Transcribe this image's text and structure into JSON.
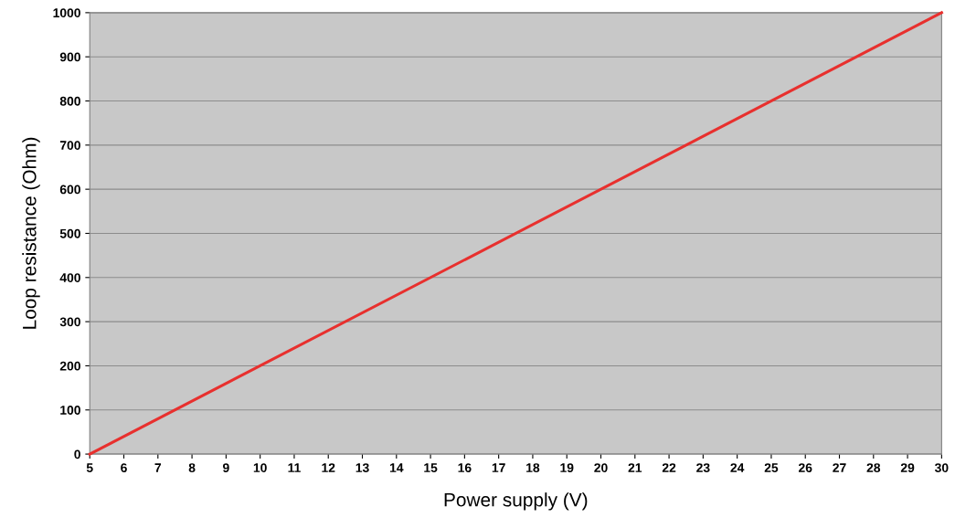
{
  "chart_data": {
    "type": "line",
    "xlabel": "Power supply (V)",
    "ylabel": "Loop resistance (Ohm)",
    "x": [
      5,
      30
    ],
    "series": [
      {
        "color": "#e8302e",
        "values": [
          0,
          1000
        ]
      }
    ],
    "xlim": [
      5,
      30
    ],
    "xticks": [
      5,
      6,
      7,
      8,
      9,
      10,
      11,
      12,
      13,
      14,
      15,
      16,
      17,
      18,
      19,
      20,
      21,
      22,
      23,
      24,
      25,
      26,
      27,
      28,
      29,
      30
    ],
    "ylim": [
      0,
      1000
    ],
    "yticks": [
      0,
      100,
      200,
      300,
      400,
      500,
      600,
      700,
      800,
      900,
      1000
    ],
    "grid": "y",
    "legend": false,
    "marker": "none",
    "line_style": "solid"
  }
}
